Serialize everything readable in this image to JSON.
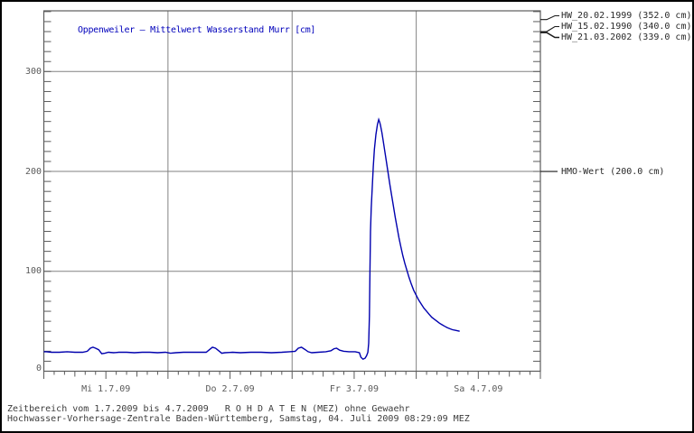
{
  "window": {
    "background": "#ffffff",
    "border_color": "#000000"
  },
  "chart_data": {
    "type": "line",
    "title": "Oppenweiler – Mittelwert Wasserstand Murr [cm]",
    "title_color": "#0000bb",
    "curve_color": "#0000ae",
    "grid_color": "#828282",
    "axis_color": "#5c5c5c",
    "leader_color": "#1a1a1a",
    "x_axis": {
      "unit": "time (MEZ)",
      "start_hour": 0,
      "end_hour": 96,
      "minor_tick_hours": 2,
      "medium_tick_hours": 6,
      "major_tick_hours": 12,
      "gridline_hours": [
        24,
        48,
        72
      ],
      "day_labels": [
        {
          "label": "Mi 1.7.09",
          "noon_hour": 12
        },
        {
          "label": "Do 2.7.09",
          "noon_hour": 36
        },
        {
          "label": "Fr 3.7.09",
          "noon_hour": 60
        },
        {
          "label": "Sa 4.7.09",
          "noon_hour": 84
        }
      ]
    },
    "y_axis": {
      "unit": "cm",
      "min": 0,
      "max": 360,
      "minor_tick": 10,
      "gridlines": [
        100,
        200,
        300
      ],
      "labels": [
        {
          "text": "0",
          "value": 0
        },
        {
          "text": "100",
          "value": 100
        },
        {
          "text": "200",
          "value": 200
        },
        {
          "text": "300",
          "value": 300
        }
      ]
    },
    "annotations": {
      "hw_marks": [
        {
          "label": "HW_20.02.1999 (352.0 cm)",
          "value": 352.0
        },
        {
          "label": "HW_15.02.1990 (340.0 cm)",
          "value": 340.0
        },
        {
          "label": "HW_21.03.2002 (339.0 cm)",
          "value": 339.0
        }
      ],
      "hmo": {
        "label": "HMO-Wert (200.0 cm)",
        "value": 200.0
      }
    },
    "series": [
      {
        "name": "Mittelwert Wasserstand Murr",
        "color": "#0000ae",
        "points_hour_cm": [
          [
            0,
            19.5
          ],
          [
            0.5,
            19.5
          ],
          [
            1.5,
            19
          ],
          [
            3,
            19
          ],
          [
            4.5,
            19.5
          ],
          [
            6,
            19
          ],
          [
            7.5,
            19
          ],
          [
            8.4,
            20
          ],
          [
            9,
            23
          ],
          [
            9.5,
            24
          ],
          [
            10,
            23
          ],
          [
            10.6,
            21.5
          ],
          [
            11.2,
            17.5
          ],
          [
            11.8,
            18
          ],
          [
            12.5,
            19
          ],
          [
            13.5,
            18.5
          ],
          [
            14.5,
            19
          ],
          [
            16,
            19
          ],
          [
            17.5,
            18.5
          ],
          [
            19,
            19
          ],
          [
            20.5,
            19
          ],
          [
            22,
            18.5
          ],
          [
            23.5,
            19
          ],
          [
            24.5,
            18
          ],
          [
            25.5,
            18.5
          ],
          [
            27,
            19
          ],
          [
            28.5,
            19
          ],
          [
            30,
            19
          ],
          [
            31.4,
            19
          ],
          [
            32,
            21.5
          ],
          [
            32.6,
            24
          ],
          [
            33.2,
            23
          ],
          [
            33.8,
            20.5
          ],
          [
            34.4,
            18
          ],
          [
            35,
            18.5
          ],
          [
            36.5,
            19
          ],
          [
            38,
            18.5
          ],
          [
            40,
            19
          ],
          [
            42,
            19
          ],
          [
            44,
            18.5
          ],
          [
            46,
            19
          ],
          [
            47.5,
            19.5
          ],
          [
            48.6,
            20
          ],
          [
            49.2,
            23
          ],
          [
            49.8,
            24
          ],
          [
            50.4,
            22
          ],
          [
            51.1,
            19.5
          ],
          [
            51.8,
            18.5
          ],
          [
            53,
            19
          ],
          [
            54.5,
            19.5
          ],
          [
            55.5,
            20.5
          ],
          [
            56.1,
            22.5
          ],
          [
            56.6,
            23
          ],
          [
            57.2,
            21
          ],
          [
            58,
            20
          ],
          [
            59,
            19.5
          ],
          [
            60.2,
            19.5
          ],
          [
            61,
            18.5
          ],
          [
            61.3,
            14
          ],
          [
            61.7,
            12
          ],
          [
            62.1,
            13
          ],
          [
            62.4,
            15.5
          ],
          [
            62.65,
            19
          ],
          [
            62.8,
            28
          ],
          [
            62.95,
            55
          ],
          [
            63.05,
            100
          ],
          [
            63.15,
            140
          ],
          [
            63.3,
            163
          ],
          [
            63.5,
            185
          ],
          [
            63.7,
            205
          ],
          [
            63.9,
            222
          ],
          [
            64.2,
            237
          ],
          [
            64.5,
            247
          ],
          [
            64.75,
            252
          ],
          [
            64.95,
            249
          ],
          [
            65.1,
            246
          ],
          [
            65.35,
            239
          ],
          [
            65.6,
            231
          ],
          [
            65.9,
            221
          ],
          [
            66.2,
            211
          ],
          [
            66.55,
            199
          ],
          [
            66.9,
            187
          ],
          [
            67.25,
            176
          ],
          [
            67.6,
            165
          ],
          [
            67.95,
            154
          ],
          [
            68.3,
            144
          ],
          [
            68.65,
            134
          ],
          [
            69,
            125
          ],
          [
            69.4,
            116
          ],
          [
            69.8,
            108
          ],
          [
            70.2,
            101
          ],
          [
            70.6,
            94
          ],
          [
            71,
            88
          ],
          [
            71.5,
            81
          ],
          [
            72,
            76
          ],
          [
            72.5,
            71
          ],
          [
            73,
            67
          ],
          [
            73.5,
            63
          ],
          [
            74,
            60
          ],
          [
            74.5,
            57
          ],
          [
            75,
            54
          ],
          [
            75.5,
            52
          ],
          [
            76,
            50
          ],
          [
            76.5,
            48
          ],
          [
            77,
            46.5
          ],
          [
            77.5,
            45
          ],
          [
            78,
            43.5
          ],
          [
            78.5,
            42.5
          ],
          [
            79,
            41.5
          ],
          [
            79.5,
            41
          ],
          [
            80,
            40.5
          ],
          [
            80.4,
            40
          ]
        ]
      }
    ]
  },
  "footer": {
    "line1": "Zeitbereich vom 1.7.2009 bis 4.7.2009   R O H D A T E N (MEZ) ohne Gewaehr",
    "line2": "Hochwasser-Vorhersage-Zentrale Baden-Württemberg, Samstag, 04. Juli 2009 08:29:09 MEZ"
  }
}
